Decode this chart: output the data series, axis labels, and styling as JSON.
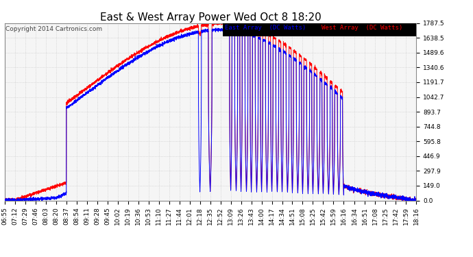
{
  "title": "East & West Array Power Wed Oct 8 18:20",
  "copyright": "Copyright 2014 Cartronics.com",
  "legend_east": "East Array  (DC Watts)",
  "legend_west": "West Array  (DC Watts)",
  "east_color": "#0000ff",
  "west_color": "#ff0000",
  "background_color": "#ffffff",
  "plot_bg_color": "#f5f5f5",
  "grid_color": "#cccccc",
  "yticks": [
    0.0,
    149.0,
    297.9,
    446.9,
    595.8,
    744.8,
    893.7,
    1042.7,
    1191.7,
    1340.6,
    1489.6,
    1638.5,
    1787.5
  ],
  "ytick_labels": [
    "0.0",
    "149.0",
    "297.9",
    "446.9",
    "595.8",
    "744.8",
    "893.7",
    "1042.7",
    "1191.7",
    "1340.6",
    "1489.6",
    "1638.5",
    "1787.5"
  ],
  "ymax": 1787.5,
  "ymin": 0.0,
  "xtick_labels": [
    "06:55",
    "07:12",
    "07:29",
    "07:46",
    "08:03",
    "08:20",
    "08:37",
    "08:54",
    "09:11",
    "09:28",
    "09:45",
    "10:02",
    "10:19",
    "10:36",
    "10:53",
    "11:10",
    "11:27",
    "11:44",
    "12:01",
    "12:18",
    "12:35",
    "12:52",
    "13:09",
    "13:26",
    "13:43",
    "14:00",
    "14:17",
    "14:34",
    "14:51",
    "15:08",
    "15:25",
    "15:42",
    "15:59",
    "16:16",
    "16:34",
    "16:51",
    "17:08",
    "17:25",
    "17:42",
    "17:59",
    "18:16"
  ],
  "title_fontsize": 11,
  "tick_fontsize": 6.5,
  "copyright_fontsize": 6.5
}
